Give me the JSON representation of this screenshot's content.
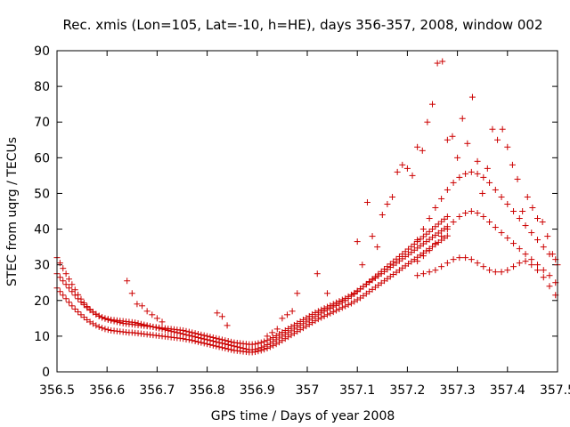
{
  "chart_data": {
    "type": "scatter",
    "title": "Rec. xmis (Lon=105, Lat=-10, h=HE), days 356-357, 2008, window 002",
    "xlabel": "GPS time / Days of year 2008",
    "ylabel": "STEC from uqrg / TECUs",
    "xlim": [
      356.5,
      357.5
    ],
    "ylim": [
      0,
      90
    ],
    "grid": false,
    "legend": "none",
    "marker": "plus",
    "marker_color": "#cc0000",
    "x_ticks": [
      "356.5",
      "356.6",
      "356.7",
      "356.8",
      "356.9",
      "357",
      "357.1",
      "357.2",
      "357.3",
      "357.4",
      "357.5"
    ],
    "x_tick_values": [
      356.5,
      356.6,
      356.7,
      356.8,
      356.9,
      357.0,
      357.1,
      357.2,
      357.3,
      357.4,
      357.5
    ],
    "y_ticks": [
      "0",
      "10",
      "20",
      "30",
      "40",
      "50",
      "60",
      "70",
      "80",
      "90"
    ],
    "y_tick_values": [
      0,
      10,
      20,
      30,
      40,
      50,
      60,
      70,
      80,
      90
    ],
    "series": [
      {
        "x": [
          356.5,
          356.506,
          356.512,
          356.518,
          356.524,
          356.53,
          356.536,
          356.542,
          356.548,
          356.554,
          356.56,
          356.566,
          356.572,
          356.578,
          356.584,
          356.59,
          356.596,
          356.602,
          356.608,
          356.614,
          356.62,
          356.626,
          356.632,
          356.638,
          356.644,
          356.65,
          356.656,
          356.662,
          356.668,
          356.674,
          356.68,
          356.686,
          356.692,
          356.698,
          356.704,
          356.71,
          356.716,
          356.722,
          356.728,
          356.734,
          356.74,
          356.746,
          356.752,
          356.758,
          356.764,
          356.77,
          356.776,
          356.782,
          356.788,
          356.794,
          356.8,
          356.806,
          356.812,
          356.818,
          356.824,
          356.83,
          356.836,
          356.842,
          356.848,
          356.854,
          356.86,
          356.866,
          356.872,
          356.878,
          356.884,
          356.89,
          356.896,
          356.902,
          356.908,
          356.914,
          356.92,
          356.926,
          356.932,
          356.938,
          356.944,
          356.95,
          356.956,
          356.962,
          356.968,
          356.974,
          356.98,
          356.986,
          356.992,
          356.998,
          357.004,
          357.01,
          357.016,
          357.022,
          357.028,
          357.034,
          357.04,
          357.046,
          357.052,
          357.058,
          357.064,
          357.07,
          357.076,
          357.082,
          357.088,
          357.094,
          357.1,
          357.106,
          357.112,
          357.118,
          357.124,
          357.13,
          357.136,
          357.142,
          357.148,
          357.154,
          357.16,
          357.166,
          357.172,
          357.178,
          357.184,
          357.19,
          357.196,
          357.202,
          357.208,
          357.214,
          357.22,
          357.226,
          357.232,
          357.238,
          357.244,
          357.25,
          357.256,
          357.262,
          357.268,
          357.274,
          357.28
        ],
        "y": [
          23.5,
          22.5,
          21.5,
          20.5,
          19.5,
          18.5,
          17.6,
          16.8,
          16.0,
          15.3,
          14.6,
          14.0,
          13.5,
          13.0,
          12.6,
          12.3,
          12.0,
          11.8,
          11.6,
          11.5,
          11.4,
          11.3,
          11.2,
          11.1,
          11.0,
          11.0,
          10.9,
          10.8,
          10.7,
          10.6,
          10.5,
          10.4,
          10.3,
          10.2,
          10.1,
          10.0,
          9.9,
          9.8,
          9.7,
          9.6,
          9.5,
          9.4,
          9.3,
          9.1,
          9.0,
          8.8,
          8.6,
          8.4,
          8.2,
          8.0,
          7.8,
          7.6,
          7.4,
          7.2,
          7.0,
          6.8,
          6.6,
          6.4,
          6.2,
          6.0,
          5.9,
          5.8,
          5.7,
          5.6,
          5.5,
          5.5,
          5.6,
          5.8,
          6.0,
          6.3,
          6.6,
          7.0,
          7.4,
          7.8,
          8.3,
          8.8,
          9.3,
          9.8,
          10.3,
          10.8,
          11.3,
          11.8,
          12.3,
          12.8,
          13.3,
          13.8,
          14.3,
          14.8,
          15.2,
          15.6,
          16.0,
          16.4,
          16.8,
          17.2,
          17.6,
          18.0,
          18.4,
          18.8,
          19.2,
          19.7,
          20.2,
          20.7,
          21.3,
          21.9,
          22.5,
          23.1,
          23.7,
          24.3,
          24.9,
          25.5,
          26.1,
          26.7,
          27.3,
          27.9,
          28.5,
          29.1,
          29.7,
          30.3,
          30.9,
          31.5,
          32.1,
          32.7,
          33.3,
          33.9,
          34.5,
          35.1,
          35.7,
          36.3,
          36.9,
          37.5,
          38.1
        ]
      },
      {
        "x": [
          356.5,
          356.506,
          356.512,
          356.518,
          356.524,
          356.53,
          356.536,
          356.542,
          356.548,
          356.554,
          356.56,
          356.566,
          356.572,
          356.578,
          356.584,
          356.59,
          356.596,
          356.602,
          356.608,
          356.614,
          356.62,
          356.626,
          356.632,
          356.638,
          356.644,
          356.65,
          356.656,
          356.662,
          356.668,
          356.674,
          356.68,
          356.686,
          356.692,
          356.698,
          356.704,
          356.71,
          356.716,
          356.722,
          356.728,
          356.734,
          356.74,
          356.746,
          356.752,
          356.758,
          356.764,
          356.77,
          356.776,
          356.782,
          356.788,
          356.794,
          356.8,
          356.806,
          356.812,
          356.818,
          356.824,
          356.83,
          356.836,
          356.842,
          356.848,
          356.854,
          356.86,
          356.866,
          356.872,
          356.878,
          356.884,
          356.89,
          356.896,
          356.902,
          356.908,
          356.914,
          356.92,
          356.926,
          356.932,
          356.938,
          356.944,
          356.95,
          356.956,
          356.962,
          356.968,
          356.974,
          356.98,
          356.986,
          356.992,
          356.998,
          357.004,
          357.01,
          357.016,
          357.022,
          357.028,
          357.034,
          357.04,
          357.046,
          357.052,
          357.058,
          357.064,
          357.07,
          357.076,
          357.082,
          357.088,
          357.094,
          357.1,
          357.106,
          357.112,
          357.118,
          357.124,
          357.13,
          357.136,
          357.142,
          357.148,
          357.154,
          357.16,
          357.166,
          357.172,
          357.178,
          357.184,
          357.19,
          357.196,
          357.202,
          357.208,
          357.214,
          357.22,
          357.226,
          357.232,
          357.238,
          357.244,
          357.25,
          357.256,
          357.262,
          357.268,
          357.274,
          357.28
        ],
        "y": [
          27.5,
          26.5,
          25.5,
          24.5,
          23.5,
          22.5,
          21.5,
          20.5,
          19.6,
          18.8,
          18.0,
          17.3,
          16.7,
          16.1,
          15.6,
          15.2,
          14.9,
          14.6,
          14.4,
          14.2,
          14.0,
          13.8,
          13.6,
          13.5,
          13.4,
          13.3,
          13.2,
          13.1,
          13.0,
          12.9,
          12.8,
          12.7,
          12.6,
          12.5,
          12.4,
          12.3,
          12.2,
          12.1,
          12.0,
          11.9,
          11.8,
          11.7,
          11.6,
          11.4,
          11.2,
          11.0,
          10.8,
          10.6,
          10.4,
          10.2,
          10.0,
          9.8,
          9.6,
          9.4,
          9.2,
          9.0,
          8.8,
          8.6,
          8.4,
          8.2,
          8.1,
          8.0,
          7.9,
          7.8,
          7.7,
          7.7,
          7.8,
          8.0,
          8.2,
          8.5,
          8.8,
          9.2,
          9.6,
          10.1,
          10.6,
          11.1,
          11.6,
          12.1,
          12.6,
          13.1,
          13.6,
          14.1,
          14.6,
          15.1,
          15.6,
          16.1,
          16.6,
          17.0,
          17.4,
          17.8,
          18.2,
          18.6,
          19.0,
          19.4,
          19.8,
          20.2,
          20.6,
          21.1,
          21.6,
          22.1,
          22.7,
          23.3,
          23.9,
          24.5,
          25.1,
          25.7,
          26.3,
          26.9,
          27.5,
          28.1,
          28.7,
          29.3,
          29.9,
          30.5,
          31.1,
          31.7,
          32.3,
          32.9,
          33.5,
          34.1,
          34.7,
          35.3,
          35.9,
          36.5,
          37.1,
          37.7,
          38.3,
          38.9,
          39.5,
          40.1,
          40.7
        ]
      },
      {
        "x": [
          356.5,
          356.506,
          356.512,
          356.518,
          356.524,
          356.53,
          356.536,
          356.542,
          356.548,
          356.554,
          356.56,
          356.566,
          356.572,
          356.578,
          356.584,
          356.59,
          356.596,
          356.602,
          356.608,
          356.614,
          356.62,
          356.626,
          356.632,
          356.638,
          356.644,
          356.65,
          356.656,
          356.662,
          356.668,
          356.674,
          356.68,
          356.686,
          356.692,
          356.698,
          356.704,
          356.71,
          356.716,
          356.722,
          356.728,
          356.734,
          356.74,
          356.746,
          356.752,
          356.758,
          356.764,
          356.77,
          356.776,
          356.782,
          356.788,
          356.794,
          356.8,
          356.806,
          356.812,
          356.818,
          356.824,
          356.83,
          356.836,
          356.842,
          356.848,
          356.854,
          356.86,
          356.866,
          356.872,
          356.878,
          356.884,
          356.89,
          356.896,
          356.902,
          356.908,
          356.914,
          356.92,
          356.926,
          356.932,
          356.938,
          356.944,
          356.95,
          356.956,
          356.962,
          356.968,
          356.974,
          356.98,
          356.986,
          356.992,
          356.998,
          357.004,
          357.01,
          357.016,
          357.022,
          357.028,
          357.034,
          357.04,
          357.046,
          357.052,
          357.058,
          357.064,
          357.07,
          357.076,
          357.082,
          357.088,
          357.094,
          357.1,
          357.106,
          357.112,
          357.118,
          357.124,
          357.13,
          357.136,
          357.142,
          357.148,
          357.154,
          357.16,
          357.166,
          357.172,
          357.178,
          357.184,
          357.19,
          357.196,
          357.202,
          357.208,
          357.214,
          357.22,
          357.226,
          357.232,
          357.238,
          357.244,
          357.25,
          357.256,
          357.262,
          357.268,
          357.274,
          357.28
        ],
        "y": [
          32.0,
          30.5,
          29.0,
          27.5,
          26.0,
          24.5,
          23.0,
          21.6,
          20.4,
          19.3,
          18.3,
          17.5,
          16.8,
          16.2,
          15.7,
          15.3,
          15.0,
          14.8,
          14.6,
          14.5,
          14.4,
          14.3,
          14.2,
          14.1,
          14.0,
          13.9,
          13.8,
          13.6,
          13.4,
          13.2,
          13.0,
          12.8,
          12.6,
          12.4,
          12.2,
          12.0,
          11.8,
          11.6,
          11.4,
          11.2,
          11.0,
          10.8,
          10.6,
          10.4,
          10.2,
          10.0,
          9.8,
          9.6,
          9.4,
          9.2,
          9.0,
          8.8,
          8.6,
          8.4,
          8.2,
          8.0,
          7.8,
          7.6,
          7.4,
          7.2,
          7.0,
          6.8,
          6.6,
          6.4,
          6.2,
          6.2,
          6.3,
          6.5,
          6.8,
          7.2,
          7.6,
          8.0,
          8.5,
          9.0,
          9.5,
          10.0,
          10.5,
          11.0,
          11.5,
          12.0,
          12.5,
          13.0,
          13.5,
          14.0,
          14.5,
          15.0,
          15.5,
          16.0,
          16.5,
          17.0,
          17.4,
          17.8,
          18.2,
          18.6,
          19.0,
          19.5,
          20.0,
          20.6,
          21.2,
          21.8,
          22.5,
          23.2,
          23.9,
          24.6,
          25.3,
          26.0,
          26.7,
          27.4,
          28.1,
          28.8,
          29.5,
          30.2,
          30.9,
          31.6,
          32.3,
          33.0,
          33.7,
          34.4,
          35.1,
          35.8,
          36.5,
          37.2,
          37.9,
          38.6,
          39.3,
          40.0,
          40.7,
          41.4,
          42.1,
          42.8,
          43.5
        ]
      },
      {
        "x": [
          356.64,
          356.65,
          356.66,
          356.67,
          356.68,
          356.69,
          356.7,
          356.71,
          356.82,
          356.83,
          356.84,
          356.92,
          356.93,
          356.94,
          356.95,
          356.96,
          356.97,
          356.98,
          357.02,
          357.04,
          357.1,
          357.11,
          357.12,
          357.13,
          357.14,
          357.15,
          357.16,
          357.17,
          357.18,
          357.19,
          357.2,
          357.21,
          357.22,
          357.23,
          357.24,
          357.25,
          357.26,
          357.27,
          357.28,
          357.29,
          357.3,
          357.31,
          357.32,
          357.33,
          357.34,
          357.35,
          357.36,
          357.37,
          357.38,
          357.39,
          357.4,
          357.41,
          357.42,
          357.43,
          357.44,
          357.45,
          357.46,
          357.47,
          357.48,
          357.49,
          357.5
        ],
        "y": [
          25.5,
          22.0,
          19.0,
          18.5,
          17.0,
          16.0,
          15.0,
          14.0,
          16.5,
          15.5,
          13.0,
          10.0,
          11.0,
          12.0,
          15.0,
          16.0,
          17.0,
          22.0,
          27.5,
          22.0,
          36.5,
          30.0,
          47.5,
          38.0,
          35.0,
          44.0,
          47.0,
          49.0,
          56.0,
          58.0,
          57.0,
          55.0,
          63.0,
          62.0,
          70.0,
          75.0,
          86.5,
          87.0,
          65.0,
          66.0,
          60.0,
          71.0,
          64.0,
          77.0,
          59.0,
          50.0,
          57.0,
          68.0,
          65.0,
          68.0,
          63.0,
          58.0,
          54.0,
          45.0,
          49.0,
          46.0,
          43.0,
          42.0,
          38.0,
          33.0,
          30.0
        ]
      },
      {
        "x": [
          357.22,
          357.232,
          357.244,
          357.256,
          357.268,
          357.28,
          357.292,
          357.304,
          357.316,
          357.328,
          357.34,
          357.352,
          357.364,
          357.376,
          357.388,
          357.4,
          357.412,
          357.424,
          357.436,
          357.448,
          357.46,
          357.472,
          357.484,
          357.496
        ],
        "y": [
          37.0,
          40.0,
          43.0,
          46.0,
          48.5,
          51.0,
          53.0,
          54.5,
          55.5,
          56.0,
          55.5,
          54.5,
          53.0,
          51.0,
          49.0,
          47.0,
          45.0,
          43.0,
          41.0,
          39.0,
          37.0,
          35.0,
          33.0,
          31.5
        ]
      },
      {
        "x": [
          357.22,
          357.232,
          357.244,
          357.256,
          357.268,
          357.28,
          357.292,
          357.304,
          357.316,
          357.328,
          357.34,
          357.352,
          357.364,
          357.376,
          357.388,
          357.4,
          357.412,
          357.424,
          357.436,
          357.448,
          357.46,
          357.472,
          357.484,
          357.496
        ],
        "y": [
          31.0,
          32.5,
          34.0,
          36.0,
          38.0,
          40.0,
          42.0,
          43.5,
          44.5,
          45.0,
          44.5,
          43.5,
          42.0,
          40.5,
          39.0,
          37.5,
          36.0,
          34.5,
          33.0,
          31.5,
          30.0,
          28.5,
          27.0,
          25.0
        ]
      },
      {
        "x": [
          357.22,
          357.232,
          357.244,
          357.256,
          357.268,
          357.28,
          357.292,
          357.304,
          357.316,
          357.328,
          357.34,
          357.352,
          357.364,
          357.376,
          357.388,
          357.4,
          357.412,
          357.424,
          357.436,
          357.448,
          357.46,
          357.472,
          357.484,
          357.496
        ],
        "y": [
          27.0,
          27.5,
          28.0,
          28.5,
          29.5,
          30.5,
          31.5,
          32.0,
          32.0,
          31.5,
          30.5,
          29.5,
          28.5,
          28.0,
          28.0,
          28.5,
          29.5,
          30.5,
          31.0,
          30.0,
          28.5,
          26.5,
          24.0,
          21.5
        ]
      }
    ]
  }
}
